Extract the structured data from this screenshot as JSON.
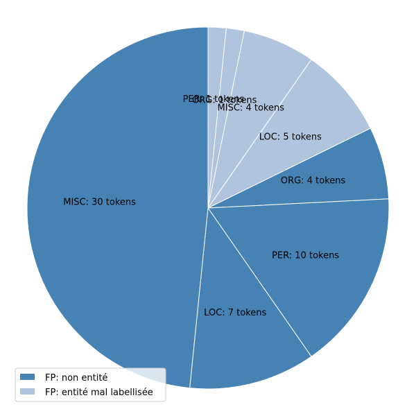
{
  "chart_data": {
    "type": "pie",
    "start_angle_deg": 90,
    "direction": "clockwise",
    "slices": [
      {
        "label": "PER: 1 tokens",
        "value": 1,
        "series": "FP: entité mal labellisée"
      },
      {
        "label": "ORG: 1 tokens",
        "value": 1,
        "series": "FP: entité mal labellisée"
      },
      {
        "label": "MISC: 4 tokens",
        "value": 4,
        "series": "FP: entité mal labellisée"
      },
      {
        "label": "LOC: 5 tokens",
        "value": 5,
        "series": "FP: entité mal labellisée"
      },
      {
        "label": "ORG: 4 tokens",
        "value": 4,
        "series": "FP: non entité"
      },
      {
        "label": "PER: 10 tokens",
        "value": 10,
        "series": "FP: non entité"
      },
      {
        "label": "LOC: 7 tokens",
        "value": 7,
        "series": "FP: non entité"
      },
      {
        "label": "MISC: 30 tokens",
        "value": 30,
        "series": "FP: non entité"
      }
    ],
    "legend": {
      "placement": "lower-left",
      "entries": [
        {
          "name": "FP: non entité",
          "color": "#4682b4"
        },
        {
          "name": "FP: entité mal labellisée",
          "color": "#b0c4de"
        }
      ]
    }
  }
}
